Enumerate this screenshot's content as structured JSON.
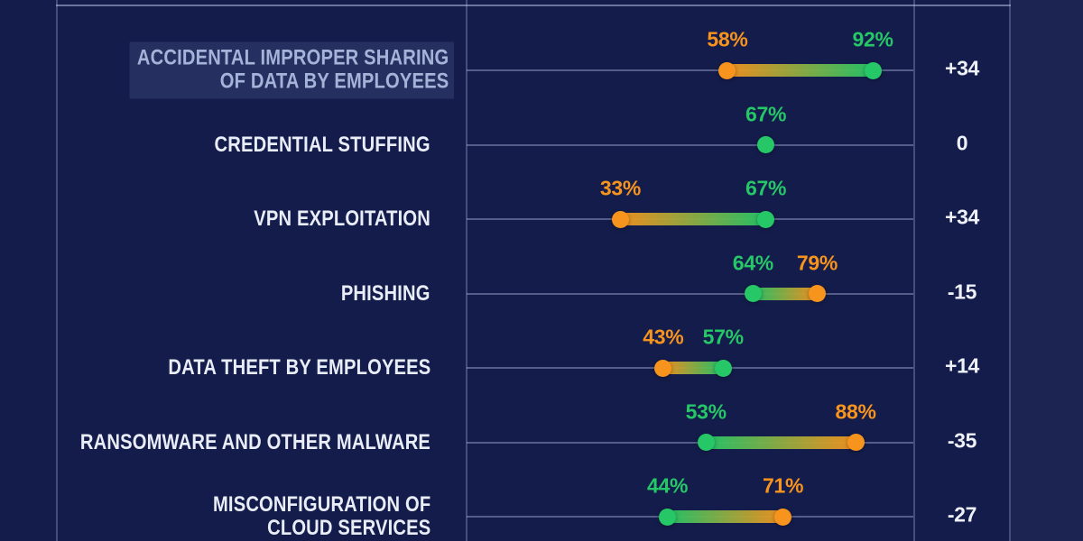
{
  "colors": {
    "background": "#141c4b",
    "grid": "rgba(173,185,222,0.38)",
    "orange": "#f7941d",
    "green": "#25c767",
    "label_text": "#e9edf7",
    "highlight_text": "#a6b3d9",
    "change_text": "#eef1f8"
  },
  "rows": [
    {
      "label_lines": [
        "ACCIDENTAL IMPROPER SHARING",
        "OF DATA BY EMPLOYEES"
      ],
      "highlighted": true,
      "orange": 58,
      "green": 92,
      "change": "+34"
    },
    {
      "label_lines": [
        "CREDENTIAL STUFFING"
      ],
      "highlighted": false,
      "orange": null,
      "green": 67,
      "change": "0"
    },
    {
      "label_lines": [
        "VPN EXPLOITATION"
      ],
      "highlighted": false,
      "orange": 33,
      "green": 67,
      "change": "+34"
    },
    {
      "label_lines": [
        "PHISHING"
      ],
      "highlighted": false,
      "orange": 79,
      "green": 64,
      "change": "-15"
    },
    {
      "label_lines": [
        "DATA THEFT BY EMPLOYEES"
      ],
      "highlighted": false,
      "orange": 43,
      "green": 57,
      "change": "+14"
    },
    {
      "label_lines": [
        "RANSOMWARE AND OTHER MALWARE"
      ],
      "highlighted": false,
      "orange": 88,
      "green": 53,
      "change": "-35"
    },
    {
      "label_lines": [
        "MISCONFIGURATION OF",
        "CLOUD SERVICES"
      ],
      "highlighted": false,
      "orange": 71,
      "green": 44,
      "change": "-27"
    }
  ],
  "chart_data": {
    "type": "dumbbell",
    "orientation": "horizontal",
    "x_range_percent": [
      0,
      100
    ],
    "grid": "row baselines behind markers, column separators",
    "legend": "none visible",
    "categories": [
      "ACCIDENTAL IMPROPER SHARING OF DATA BY EMPLOYEES",
      "CREDENTIAL STUFFING",
      "VPN EXPLOITATION",
      "PHISHING",
      "DATA THEFT BY EMPLOYEES",
      "RANSOMWARE AND OTHER MALWARE",
      "MISCONFIGURATION OF CLOUD SERVICES"
    ],
    "series": [
      {
        "name": "orange_marker",
        "color": "#f7941d",
        "values": [
          58,
          null,
          33,
          79,
          43,
          88,
          71
        ]
      },
      {
        "name": "green_marker",
        "color": "#25c767",
        "values": [
          92,
          67,
          67,
          64,
          57,
          53,
          44
        ]
      }
    ],
    "changes": [
      "+34",
      "0",
      "+34",
      "-15",
      "+14",
      "-35",
      "-27"
    ]
  }
}
